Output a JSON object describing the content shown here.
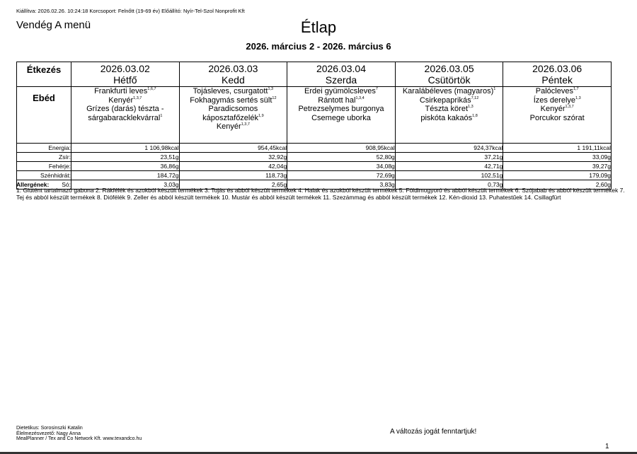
{
  "meta": "Kiállítva: 2026.02.26. 10:24:18 Korcsoport: Felnőtt (19-69 év) Előállító: Nyír-Tel-Szol Nonprofit Kft",
  "menu_name": "Vendég A menü",
  "title": "Étlap",
  "date_range": "2026. március 2 - 2026. március 6",
  "table": {
    "col_label": "Étkezés",
    "meal_label": "Ebéd",
    "days": [
      {
        "date": "2026.03.02",
        "name": "Hétfő",
        "dishes": [
          {
            "n": "Frankfurti leves",
            "a": "1,6,7"
          },
          {
            "n": "Kenyér",
            "a": "1,3,7"
          },
          {
            "n": "Grízes (darás) tészta - sárgabaracklekvárral",
            "a": "1"
          }
        ]
      },
      {
        "date": "2026.03.03",
        "name": "Kedd",
        "dishes": [
          {
            "n": "Tojásleves, csurgatott",
            "a": "1,3"
          },
          {
            "n": "Fokhagymás sertés sült",
            "a": "12"
          },
          {
            "n": "Paradicsomos káposztafőzelék",
            "a": "1,9"
          },
          {
            "n": "Kenyér",
            "a": "1,3,7"
          }
        ]
      },
      {
        "date": "2026.03.04",
        "name": "Szerda",
        "dishes": [
          {
            "n": "Erdei gyümölcsleves",
            "a": "7"
          },
          {
            "n": "Rántott hal",
            "a": "1,3,4"
          },
          {
            "n": "Petrezselymes burgonya",
            "a": ""
          },
          {
            "n": "Csemege uborka",
            "a": ""
          }
        ]
      },
      {
        "date": "2026.03.05",
        "name": "Csütörtök",
        "dishes": [
          {
            "n": "Karalábéleves (magyaros)",
            "a": "1"
          },
          {
            "n": "Csirkepaprikás",
            "a": "7,12"
          },
          {
            "n": "Tészta köret",
            "a": "1,3"
          },
          {
            "n": "piskóta kakaós",
            "a": "1,8"
          }
        ]
      },
      {
        "date": "2026.03.06",
        "name": "Péntek",
        "dishes": [
          {
            "n": "Palócleves",
            "a": "1,7"
          },
          {
            "n": "Ízes derelye",
            "a": "1,3"
          },
          {
            "n": "Kenyér",
            "a": "1,3,7"
          },
          {
            "n": "Porcukor szórat",
            "a": ""
          }
        ]
      }
    ],
    "nutrition": [
      {
        "label": "Energia:",
        "values": [
          "1 106,98kcal",
          "954,45kcal",
          "908,95kcal",
          "924,37kcal",
          "1 191,11kcal"
        ]
      },
      {
        "label": "Zsír:",
        "values": [
          "23,51g",
          "32,92g",
          "52,80g",
          "37,21g",
          "33,09g"
        ]
      },
      {
        "label": "Fehérje:",
        "values": [
          "36,86g",
          "42,04g",
          "34,08g",
          "42,71g",
          "39,27g"
        ]
      },
      {
        "label": "Szénhidrát:",
        "values": [
          "184,72g",
          "118,73g",
          "72,69g",
          "102,51g",
          "179,09g"
        ]
      },
      {
        "label": "Só:",
        "values": [
          "3,03g",
          "2,65g",
          "3,83g",
          "0,73g",
          "2,60g"
        ]
      }
    ]
  },
  "allergens_title": "Allergének:",
  "allergens_text": "1. Glutént tartalmazó gabona 2. Rákfélék és azokból készült termékek 3. Tojás és abból készült termékek 4. Halak és azokból készült termékek 5. Földimogyoró és abból készült termékek 6. Szójabab és abból készült termékek 7. Tej és abból készült termékek 8. Diófélék 9. Zeller és abból készült termékek 10. Mustár és abból készült termékek 11. Szezámmag és abból készült termékek 12. Kén-dioxid 13. Puhatestűek 14. Csillagfürt",
  "footer": {
    "dietitian": "Dietetikus: Sorosinszki Katalin",
    "manager": "Élelmezésvezető: Nagy Anna",
    "software": "MealPlanner / Tex and Co Network Kft. www.texandco.hu",
    "notice": "A változás jogát fenntartjuk!",
    "page": "1"
  }
}
